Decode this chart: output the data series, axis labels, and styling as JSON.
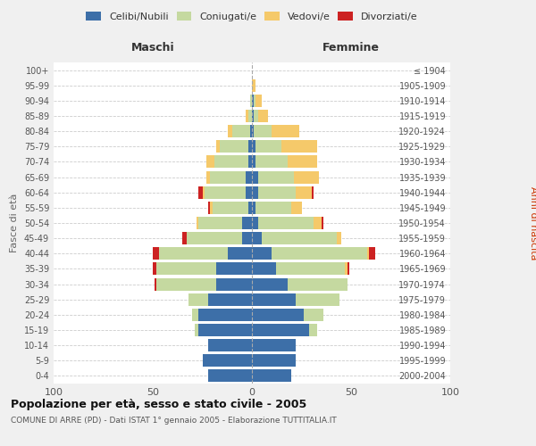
{
  "age_groups": [
    "0-4",
    "5-9",
    "10-14",
    "15-19",
    "20-24",
    "25-29",
    "30-34",
    "35-39",
    "40-44",
    "45-49",
    "50-54",
    "55-59",
    "60-64",
    "65-69",
    "70-74",
    "75-79",
    "80-84",
    "85-89",
    "90-94",
    "95-99",
    "100+"
  ],
  "birth_years": [
    "2000-2004",
    "1995-1999",
    "1990-1994",
    "1985-1989",
    "1980-1984",
    "1975-1979",
    "1970-1974",
    "1965-1969",
    "1960-1964",
    "1955-1959",
    "1950-1954",
    "1945-1949",
    "1940-1944",
    "1935-1939",
    "1930-1934",
    "1925-1929",
    "1920-1924",
    "1915-1919",
    "1910-1914",
    "1905-1909",
    "≤ 1904"
  ],
  "male": {
    "celibe": [
      22,
      25,
      22,
      27,
      27,
      22,
      18,
      18,
      12,
      5,
      5,
      2,
      3,
      3,
      2,
      2,
      1,
      0,
      0,
      0,
      0
    ],
    "coniugato": [
      0,
      0,
      0,
      2,
      3,
      10,
      30,
      30,
      35,
      28,
      22,
      18,
      21,
      18,
      17,
      14,
      9,
      2,
      1,
      0,
      0
    ],
    "vedovo": [
      0,
      0,
      0,
      0,
      0,
      0,
      0,
      0,
      0,
      0,
      1,
      1,
      1,
      2,
      4,
      2,
      2,
      1,
      0,
      0,
      0
    ],
    "divorziato": [
      0,
      0,
      0,
      0,
      0,
      0,
      1,
      2,
      3,
      2,
      0,
      1,
      2,
      0,
      0,
      0,
      0,
      0,
      0,
      0,
      0
    ]
  },
  "female": {
    "nubile": [
      20,
      22,
      22,
      29,
      26,
      22,
      18,
      12,
      10,
      5,
      3,
      2,
      3,
      3,
      2,
      2,
      1,
      1,
      1,
      0,
      0
    ],
    "coniugata": [
      0,
      0,
      0,
      4,
      10,
      22,
      30,
      35,
      48,
      38,
      28,
      18,
      19,
      18,
      16,
      13,
      9,
      2,
      1,
      0,
      0
    ],
    "vedova": [
      0,
      0,
      0,
      0,
      0,
      0,
      0,
      1,
      1,
      2,
      4,
      5,
      8,
      13,
      15,
      18,
      14,
      5,
      3,
      2,
      0
    ],
    "divorziata": [
      0,
      0,
      0,
      0,
      0,
      0,
      0,
      1,
      3,
      0,
      1,
      0,
      1,
      0,
      0,
      0,
      0,
      0,
      0,
      0,
      0
    ]
  },
  "colors": {
    "celibe": "#3d6fa8",
    "coniugato": "#c5d9a0",
    "vedovo": "#f5c96a",
    "divorziato": "#cc2222"
  },
  "xlim": 100,
  "title": "Popolazione per età, sesso e stato civile - 2005",
  "subtitle": "COMUNE DI ARRE (PD) - Dati ISTAT 1° gennaio 2005 - Elaborazione TUTTITALIA.IT",
  "ylabel_left": "Fasce di età",
  "ylabel_right": "Anni di nascita",
  "xlabel_maschi": "Maschi",
  "xlabel_femmine": "Femmine",
  "legend_labels": [
    "Celibi/Nubili",
    "Coniugati/e",
    "Vedovi/e",
    "Divorziati/e"
  ],
  "bg_color": "#f0f0f0",
  "plot_bg": "#ffffff"
}
